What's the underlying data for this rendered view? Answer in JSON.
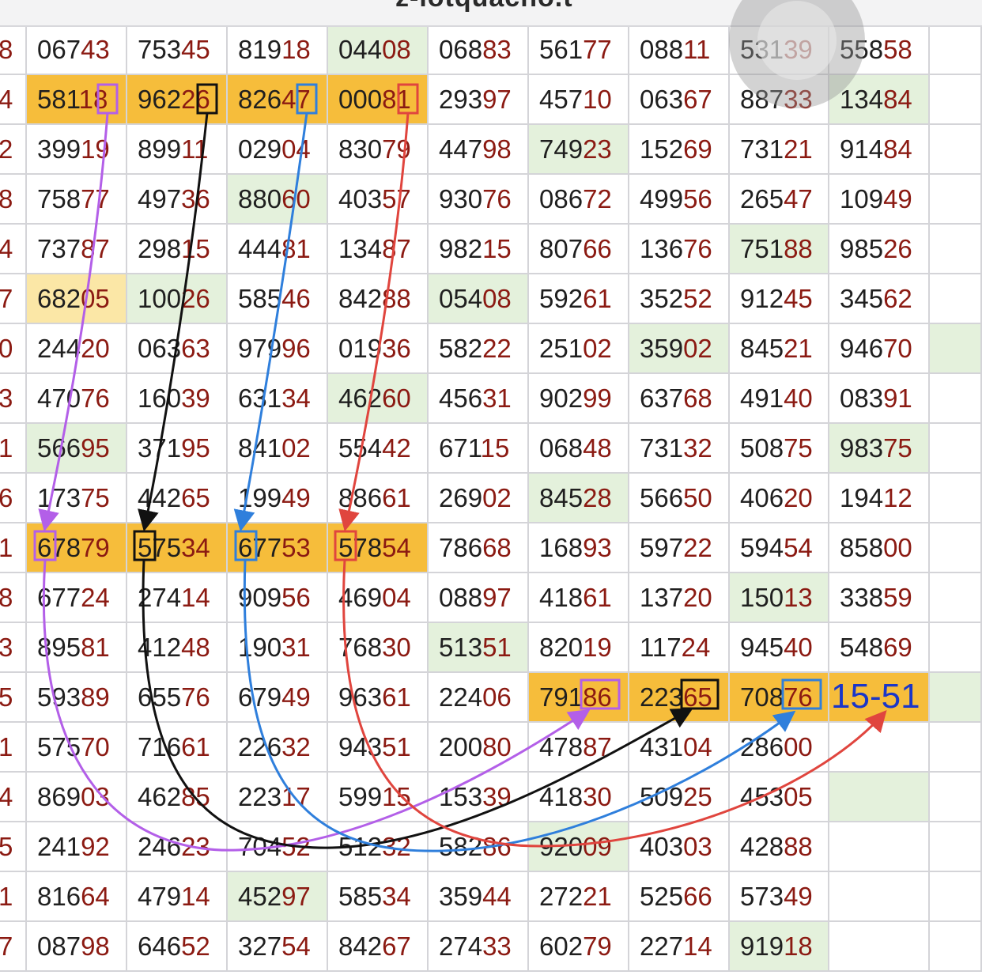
{
  "title_fragment": "z-lotquacho.t",
  "left_digits": [
    "8",
    "4",
    "2",
    "8",
    "4",
    "7",
    "0",
    "3",
    "1",
    "6",
    "1",
    "8",
    "3",
    "5",
    "1",
    "4",
    "5",
    "1",
    "7"
  ],
  "rows": [
    [
      "06743",
      "75345",
      "81918",
      "04408",
      "06883",
      "56177",
      "08811",
      "53139",
      "55858"
    ],
    [
      "58118",
      "96226",
      "82647",
      "00081",
      "29397",
      "45710",
      "06367",
      "88733",
      "13484"
    ],
    [
      "39919",
      "89911",
      "02904",
      "83079",
      "44798",
      "74923",
      "15269",
      "73121",
      "91484"
    ],
    [
      "75877",
      "49736",
      "88060",
      "40357",
      "93076",
      "08672",
      "49956",
      "26547",
      "10949"
    ],
    [
      "73787",
      "29815",
      "44481",
      "13487",
      "98215",
      "80766",
      "13676",
      "75188",
      "98526"
    ],
    [
      "68205",
      "10026",
      "58546",
      "84288",
      "05408",
      "59261",
      "35252",
      "91245",
      "34562"
    ],
    [
      "24420",
      "06363",
      "97996",
      "01936",
      "58222",
      "25102",
      "35902",
      "84521",
      "94670"
    ],
    [
      "47076",
      "16039",
      "63134",
      "46260",
      "45631",
      "90299",
      "63768",
      "49140",
      "08391"
    ],
    [
      "56695",
      "37195",
      "84102",
      "55442",
      "67115",
      "06848",
      "73132",
      "50875",
      "98375"
    ],
    [
      "17375",
      "44265",
      "19949",
      "88661",
      "26902",
      "84528",
      "56650",
      "40620",
      "19412"
    ],
    [
      "67879",
      "57534",
      "67753",
      "57854",
      "78668",
      "16893",
      "59722",
      "59454",
      "85800"
    ],
    [
      "67724",
      "27414",
      "90956",
      "46904",
      "08897",
      "41861",
      "13720",
      "15013",
      "33859"
    ],
    [
      "89581",
      "41248",
      "19031",
      "76830",
      "51351",
      "82019",
      "11724",
      "94540",
      "54869"
    ],
    [
      "59389",
      "65576",
      "67949",
      "96361",
      "22406",
      "79186",
      "22365",
      "70876",
      "15-51"
    ],
    [
      "57570",
      "71661",
      "22632",
      "94351",
      "20080",
      "47887",
      "43104",
      "28600",
      ""
    ],
    [
      "86903",
      "46285",
      "22317",
      "59915",
      "15339",
      "41830",
      "50925",
      "45305",
      ""
    ],
    [
      "24192",
      "24623",
      "70452",
      "51232",
      "58286",
      "92009",
      "40303",
      "42888",
      ""
    ],
    [
      "81664",
      "47914",
      "45297",
      "58534",
      "35944",
      "27221",
      "52566",
      "57349",
      ""
    ],
    [
      "08798",
      "64652",
      "32754",
      "84267",
      "27433",
      "60279",
      "22714",
      "91918",
      ""
    ]
  ],
  "highlights": {
    "orange": [
      [
        1,
        0
      ],
      [
        1,
        1
      ],
      [
        1,
        2
      ],
      [
        1,
        3
      ],
      [
        10,
        0
      ],
      [
        10,
        1
      ],
      [
        10,
        2
      ],
      [
        10,
        3
      ],
      [
        13,
        5
      ],
      [
        13,
        6
      ],
      [
        13,
        7
      ],
      [
        13,
        8
      ]
    ],
    "yellow": [
      [
        5,
        0
      ]
    ],
    "green": [
      [
        0,
        3
      ],
      [
        1,
        8
      ],
      [
        2,
        5
      ],
      [
        3,
        2
      ],
      [
        4,
        7
      ],
      [
        5,
        1
      ],
      [
        5,
        4
      ],
      [
        6,
        6
      ],
      [
        6,
        9
      ],
      [
        7,
        3
      ],
      [
        8,
        0
      ],
      [
        8,
        8
      ],
      [
        9,
        5
      ],
      [
        11,
        7
      ],
      [
        12,
        4
      ],
      [
        13,
        9
      ],
      [
        16,
        5
      ],
      [
        15,
        8
      ],
      [
        17,
        2
      ],
      [
        18,
        7
      ],
      [
        19,
        1
      ],
      [
        19,
        2
      ]
    ]
  },
  "arrow_colors": {
    "purple": "#b35fe8",
    "black": "#111111",
    "blue": "#2f7fdc",
    "red": "#e0453e"
  },
  "result_label": "15-51",
  "record_button": "screen-record-button"
}
